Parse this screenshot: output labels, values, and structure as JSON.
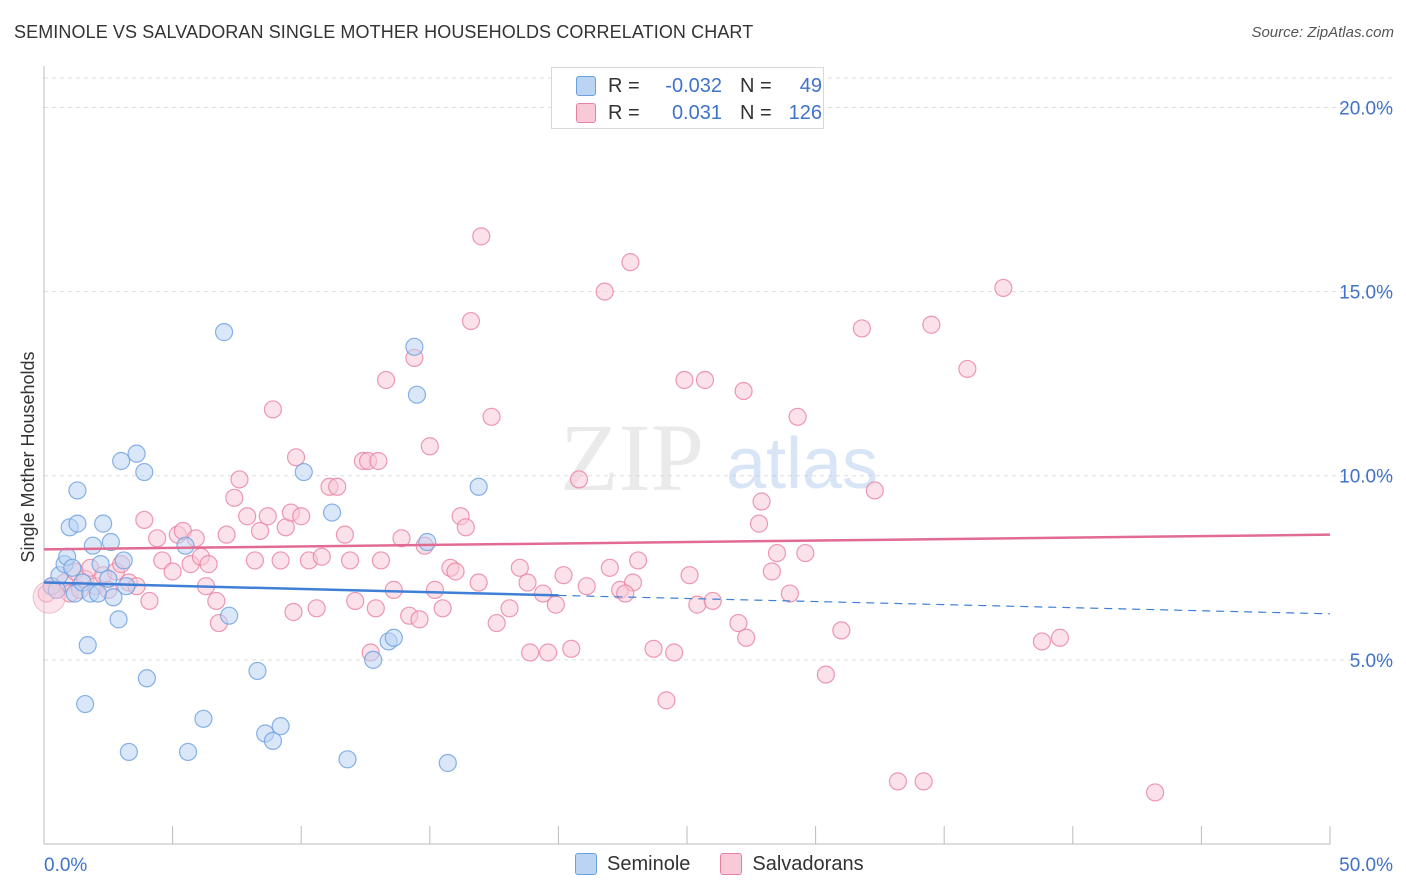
{
  "title": "SEMINOLE VS SALVADORAN SINGLE MOTHER HOUSEHOLDS CORRELATION CHART",
  "source": "Source: ZipAtlas.com",
  "watermark": {
    "zip": "ZIP",
    "atlas": "atlas"
  },
  "legend": {
    "rows": [
      {
        "r_label": "R =",
        "r_value": "-0.032",
        "n_label": "N =",
        "n_value": "49",
        "color": "#6a9fe0",
        "fill": "#bcd4f4"
      },
      {
        "r_label": "R =",
        "r_value": "0.031",
        "n_label": "N =",
        "n_value": "126",
        "color": "#e8819f",
        "fill": "#f8c9d7"
      }
    ]
  },
  "bottom_legend": [
    {
      "label": "Seminole",
      "color": "#6a9fe0",
      "fill": "#bcd4f4"
    },
    {
      "label": "Salvadorans",
      "color": "#e8819f",
      "fill": "#f8c9d7"
    }
  ],
  "chart_data": {
    "type": "scatter",
    "title": "SEMINOLE VS SALVADORAN SINGLE MOTHER HOUSEHOLDS CORRELATION CHART",
    "xlabel": "",
    "ylabel": "Single Mother Households",
    "xlim": [
      0,
      50
    ],
    "ylim": [
      0,
      20.8
    ],
    "x_tick_labels": [
      "0.0%",
      "50.0%"
    ],
    "y_ticks": [
      5,
      10,
      15,
      20
    ],
    "y_tick_labels": [
      "5.0%",
      "10.0%",
      "15.0%",
      "20.0%"
    ],
    "grid": "horizontal dashed",
    "legend_position": "top-center",
    "colors": {
      "seminole": "#3f7fd6",
      "salvadorans": "#e26b93",
      "tick_label": "#3f72c9"
    },
    "series": [
      {
        "name": "Seminole",
        "color": "#6a9fe0",
        "trend": {
          "x": [
            0,
            20
          ],
          "y": [
            7.1,
            6.75
          ],
          "dashed_extension": {
            "x": [
              20,
              50
            ],
            "y": [
              6.75,
              6.25
            ]
          }
        },
        "points": [
          [
            0.3,
            7.0
          ],
          [
            0.5,
            6.9
          ],
          [
            0.6,
            7.3
          ],
          [
            0.8,
            7.6
          ],
          [
            0.9,
            7.8
          ],
          [
            1.0,
            8.6
          ],
          [
            1.1,
            7.5
          ],
          [
            1.2,
            6.8
          ],
          [
            1.3,
            8.7
          ],
          [
            1.3,
            9.6
          ],
          [
            1.5,
            7.1
          ],
          [
            1.6,
            3.8
          ],
          [
            1.7,
            5.4
          ],
          [
            1.8,
            6.8
          ],
          [
            1.9,
            8.1
          ],
          [
            2.1,
            6.8
          ],
          [
            2.2,
            7.6
          ],
          [
            2.3,
            8.7
          ],
          [
            2.5,
            7.2
          ],
          [
            2.6,
            8.2
          ],
          [
            2.7,
            6.7
          ],
          [
            2.9,
            6.1
          ],
          [
            3.0,
            10.4
          ],
          [
            3.1,
            7.7
          ],
          [
            3.2,
            7.0
          ],
          [
            3.3,
            2.5
          ],
          [
            3.6,
            10.6
          ],
          [
            3.9,
            10.1
          ],
          [
            4.0,
            4.5
          ],
          [
            5.6,
            2.5
          ],
          [
            5.5,
            8.1
          ],
          [
            6.2,
            3.4
          ],
          [
            7.0,
            13.9
          ],
          [
            7.2,
            6.2
          ],
          [
            8.3,
            4.7
          ],
          [
            8.6,
            3.0
          ],
          [
            8.9,
            2.8
          ],
          [
            9.2,
            3.2
          ],
          [
            10.1,
            10.1
          ],
          [
            11.2,
            9.0
          ],
          [
            11.8,
            2.3
          ],
          [
            12.8,
            5.0
          ],
          [
            13.4,
            5.5
          ],
          [
            13.6,
            5.6
          ],
          [
            14.4,
            13.5
          ],
          [
            14.5,
            12.2
          ],
          [
            14.9,
            8.2
          ],
          [
            15.7,
            2.2
          ],
          [
            16.9,
            9.7
          ]
        ]
      },
      {
        "name": "Salvadorans",
        "color": "#e8819f",
        "trend": {
          "x": [
            0,
            50
          ],
          "y": [
            8.0,
            8.4
          ]
        },
        "points": [
          [
            0.1,
            6.8
          ],
          [
            0.3,
            7.0
          ],
          [
            0.5,
            6.9
          ],
          [
            0.8,
            7.1
          ],
          [
            1.0,
            6.8
          ],
          [
            1.2,
            7.4
          ],
          [
            1.4,
            6.9
          ],
          [
            1.6,
            7.2
          ],
          [
            1.8,
            7.5
          ],
          [
            2.0,
            7.0
          ],
          [
            2.3,
            7.3
          ],
          [
            2.5,
            6.9
          ],
          [
            2.8,
            7.4
          ],
          [
            3.0,
            7.6
          ],
          [
            3.3,
            7.1
          ],
          [
            3.6,
            7.0
          ],
          [
            3.9,
            8.8
          ],
          [
            4.1,
            6.6
          ],
          [
            4.4,
            8.3
          ],
          [
            4.6,
            7.7
          ],
          [
            5.0,
            7.4
          ],
          [
            5.2,
            8.4
          ],
          [
            5.4,
            8.5
          ],
          [
            5.7,
            7.6
          ],
          [
            5.9,
            8.3
          ],
          [
            6.1,
            7.8
          ],
          [
            6.4,
            7.6
          ],
          [
            6.7,
            6.6
          ],
          [
            6.8,
            6.0
          ],
          [
            7.1,
            8.4
          ],
          [
            7.4,
            9.4
          ],
          [
            7.6,
            9.9
          ],
          [
            7.9,
            8.9
          ],
          [
            8.2,
            7.7
          ],
          [
            8.4,
            8.5
          ],
          [
            8.7,
            8.9
          ],
          [
            8.9,
            11.8
          ],
          [
            9.2,
            7.7
          ],
          [
            9.4,
            8.6
          ],
          [
            9.6,
            9.0
          ],
          [
            9.8,
            10.5
          ],
          [
            10.0,
            8.9
          ],
          [
            10.3,
            7.7
          ],
          [
            10.6,
            6.4
          ],
          [
            10.8,
            7.8
          ],
          [
            11.1,
            9.7
          ],
          [
            11.4,
            9.7
          ],
          [
            11.7,
            8.4
          ],
          [
            11.9,
            7.7
          ],
          [
            12.1,
            6.6
          ],
          [
            12.4,
            10.4
          ],
          [
            12.6,
            10.4
          ],
          [
            12.7,
            5.2
          ],
          [
            12.9,
            6.4
          ],
          [
            13.1,
            7.7
          ],
          [
            13.3,
            12.6
          ],
          [
            13.6,
            6.9
          ],
          [
            13.9,
            8.3
          ],
          [
            14.2,
            6.2
          ],
          [
            14.4,
            13.2
          ],
          [
            14.6,
            6.1
          ],
          [
            14.8,
            8.1
          ],
          [
            15.0,
            10.8
          ],
          [
            15.2,
            6.9
          ],
          [
            15.5,
            6.4
          ],
          [
            15.8,
            7.5
          ],
          [
            16.2,
            8.9
          ],
          [
            16.4,
            8.6
          ],
          [
            16.6,
            14.2
          ],
          [
            16.9,
            7.1
          ],
          [
            17.0,
            16.5
          ],
          [
            17.4,
            11.6
          ],
          [
            17.6,
            6.0
          ],
          [
            18.1,
            6.4
          ],
          [
            18.5,
            7.5
          ],
          [
            18.8,
            7.1
          ],
          [
            18.9,
            5.2
          ],
          [
            19.4,
            6.8
          ],
          [
            19.6,
            5.2
          ],
          [
            19.9,
            6.5
          ],
          [
            20.2,
            7.3
          ],
          [
            20.5,
            5.3
          ],
          [
            20.8,
            9.9
          ],
          [
            21.1,
            7.0
          ],
          [
            21.8,
            15.0
          ],
          [
            22.0,
            7.5
          ],
          [
            22.4,
            6.9
          ],
          [
            22.8,
            15.8
          ],
          [
            22.9,
            7.1
          ],
          [
            23.1,
            7.7
          ],
          [
            23.7,
            5.3
          ],
          [
            24.2,
            3.9
          ],
          [
            24.5,
            5.2
          ],
          [
            24.9,
            12.6
          ],
          [
            25.1,
            7.3
          ],
          [
            25.4,
            6.5
          ],
          [
            25.7,
            12.6
          ],
          [
            26.0,
            6.6
          ],
          [
            27.0,
            6.0
          ],
          [
            27.2,
            12.3
          ],
          [
            27.3,
            5.6
          ],
          [
            27.8,
            8.7
          ],
          [
            27.9,
            9.3
          ],
          [
            28.5,
            7.9
          ],
          [
            29.0,
            6.8
          ],
          [
            29.3,
            11.6
          ],
          [
            29.6,
            7.9
          ],
          [
            30.4,
            4.6
          ],
          [
            31.0,
            5.8
          ],
          [
            31.8,
            14.0
          ],
          [
            32.3,
            9.6
          ],
          [
            33.2,
            1.7
          ],
          [
            34.2,
            1.7
          ],
          [
            34.5,
            14.1
          ],
          [
            35.9,
            12.9
          ],
          [
            37.3,
            15.1
          ],
          [
            38.8,
            5.5
          ],
          [
            39.5,
            5.6
          ],
          [
            43.2,
            1.4
          ],
          [
            28.3,
            7.4
          ],
          [
            22.6,
            6.8
          ],
          [
            16.0,
            7.4
          ],
          [
            13.0,
            10.4
          ],
          [
            9.7,
            6.3
          ],
          [
            6.3,
            7.0
          ]
        ]
      }
    ]
  }
}
